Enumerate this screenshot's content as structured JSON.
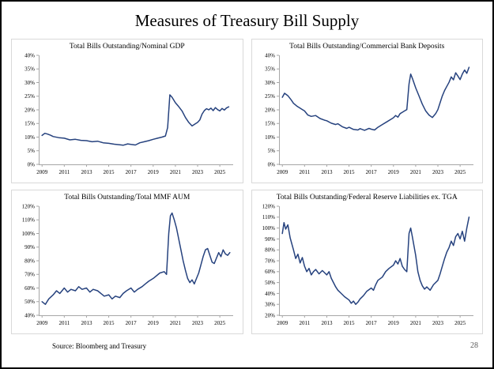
{
  "slide": {
    "title": "Measures of Treasury Bill Supply",
    "source": "Source: Bloomberg and Treasury",
    "page_number": "28"
  },
  "colors": {
    "line": "#26427e",
    "axis": "#a6a6a6",
    "tick_text": "#000000"
  },
  "chart_data": [
    {
      "type": "line",
      "title": "Total Bills Outstanding/Nominal GDP",
      "xlabel": "",
      "ylabel": "",
      "legend": false,
      "grid": false,
      "xlim": [
        2008.7,
        2026.2
      ],
      "ylim": [
        0,
        40
      ],
      "yticks": [
        0,
        5,
        10,
        15,
        20,
        25,
        30,
        35,
        40
      ],
      "xticks": [
        2009,
        2011,
        2013,
        2015,
        2017,
        2019,
        2021,
        2023,
        2025
      ],
      "points": [
        [
          2009.0,
          10.6
        ],
        [
          2009.25,
          11.4
        ],
        [
          2009.5,
          11.1
        ],
        [
          2009.75,
          10.7
        ],
        [
          2010.0,
          10.2
        ],
        [
          2010.5,
          9.8
        ],
        [
          2011.0,
          9.6
        ],
        [
          2011.5,
          9.0
        ],
        [
          2012.0,
          9.2
        ],
        [
          2012.5,
          8.8
        ],
        [
          2013.0,
          8.7
        ],
        [
          2013.5,
          8.3
        ],
        [
          2014.0,
          8.5
        ],
        [
          2014.5,
          7.9
        ],
        [
          2015.0,
          7.7
        ],
        [
          2015.5,
          7.4
        ],
        [
          2016.0,
          7.2
        ],
        [
          2016.3,
          7.0
        ],
        [
          2016.7,
          7.5
        ],
        [
          2017.0,
          7.3
        ],
        [
          2017.4,
          7.1
        ],
        [
          2017.8,
          7.9
        ],
        [
          2018.2,
          8.3
        ],
        [
          2018.6,
          8.7
        ],
        [
          2019.0,
          9.2
        ],
        [
          2019.4,
          9.6
        ],
        [
          2019.8,
          10.0
        ],
        [
          2020.1,
          10.4
        ],
        [
          2020.3,
          13.5
        ],
        [
          2020.5,
          25.5
        ],
        [
          2020.7,
          24.6
        ],
        [
          2021.0,
          22.6
        ],
        [
          2021.3,
          21.2
        ],
        [
          2021.6,
          19.6
        ],
        [
          2021.9,
          17.2
        ],
        [
          2022.2,
          15.4
        ],
        [
          2022.5,
          14.1
        ],
        [
          2022.8,
          14.9
        ],
        [
          2023.0,
          15.4
        ],
        [
          2023.2,
          16.3
        ],
        [
          2023.4,
          18.4
        ],
        [
          2023.6,
          19.7
        ],
        [
          2023.8,
          20.4
        ],
        [
          2024.0,
          20.0
        ],
        [
          2024.2,
          20.6
        ],
        [
          2024.4,
          19.7
        ],
        [
          2024.6,
          20.8
        ],
        [
          2024.8,
          20.1
        ],
        [
          2025.0,
          19.6
        ],
        [
          2025.2,
          20.5
        ],
        [
          2025.4,
          19.9
        ],
        [
          2025.6,
          20.7
        ],
        [
          2025.8,
          21.1
        ]
      ]
    },
    {
      "type": "line",
      "title": "Total Bills Outstanding/Commercial Bank Deposits",
      "xlabel": "",
      "ylabel": "",
      "legend": false,
      "grid": false,
      "xlim": [
        2008.7,
        2026.2
      ],
      "ylim": [
        0,
        40
      ],
      "yticks": [
        0,
        5,
        10,
        15,
        20,
        25,
        30,
        35,
        40
      ],
      "xticks": [
        2009,
        2011,
        2013,
        2015,
        2017,
        2019,
        2021,
        2023,
        2025
      ],
      "points": [
        [
          2009.0,
          24.6
        ],
        [
          2009.2,
          26.1
        ],
        [
          2009.5,
          25.2
        ],
        [
          2009.8,
          23.6
        ],
        [
          2010.0,
          22.4
        ],
        [
          2010.3,
          21.4
        ],
        [
          2010.6,
          20.6
        ],
        [
          2011.0,
          19.6
        ],
        [
          2011.3,
          18.1
        ],
        [
          2011.6,
          17.6
        ],
        [
          2012.0,
          17.9
        ],
        [
          2012.4,
          16.8
        ],
        [
          2012.8,
          16.2
        ],
        [
          2013.0,
          16.0
        ],
        [
          2013.4,
          15.1
        ],
        [
          2013.8,
          14.6
        ],
        [
          2014.0,
          14.9
        ],
        [
          2014.4,
          13.8
        ],
        [
          2014.8,
          13.2
        ],
        [
          2015.0,
          13.6
        ],
        [
          2015.4,
          12.8
        ],
        [
          2015.8,
          12.6
        ],
        [
          2016.0,
          13.1
        ],
        [
          2016.4,
          12.5
        ],
        [
          2016.8,
          13.2
        ],
        [
          2017.0,
          12.9
        ],
        [
          2017.3,
          12.6
        ],
        [
          2017.6,
          13.6
        ],
        [
          2018.0,
          14.6
        ],
        [
          2018.4,
          15.6
        ],
        [
          2018.8,
          16.6
        ],
        [
          2019.0,
          17.1
        ],
        [
          2019.2,
          17.9
        ],
        [
          2019.4,
          17.3
        ],
        [
          2019.6,
          18.6
        ],
        [
          2019.8,
          19.1
        ],
        [
          2020.0,
          19.6
        ],
        [
          2020.2,
          20.1
        ],
        [
          2020.4,
          29.5
        ],
        [
          2020.55,
          33.1
        ],
        [
          2020.7,
          31.6
        ],
        [
          2021.0,
          28.1
        ],
        [
          2021.3,
          25.1
        ],
        [
          2021.6,
          22.1
        ],
        [
          2021.9,
          19.6
        ],
        [
          2022.2,
          18.1
        ],
        [
          2022.5,
          17.2
        ],
        [
          2022.8,
          18.6
        ],
        [
          2023.0,
          20.1
        ],
        [
          2023.2,
          22.6
        ],
        [
          2023.4,
          25.1
        ],
        [
          2023.6,
          27.1
        ],
        [
          2023.8,
          28.6
        ],
        [
          2024.0,
          30.1
        ],
        [
          2024.2,
          32.1
        ],
        [
          2024.4,
          31.0
        ],
        [
          2024.6,
          33.6
        ],
        [
          2024.8,
          32.4
        ],
        [
          2025.0,
          31.1
        ],
        [
          2025.2,
          33.1
        ],
        [
          2025.4,
          34.6
        ],
        [
          2025.6,
          33.4
        ],
        [
          2025.8,
          35.6
        ]
      ]
    },
    {
      "type": "line",
      "title": "Total Bills Outstanding/Total MMF AUM",
      "xlabel": "",
      "ylabel": "",
      "legend": false,
      "grid": false,
      "xlim": [
        2008.7,
        2026.2
      ],
      "ylim": [
        40,
        120
      ],
      "yticks": [
        40,
        50,
        60,
        70,
        80,
        90,
        100,
        110,
        120
      ],
      "xticks": [
        2009,
        2011,
        2013,
        2015,
        2017,
        2019,
        2021,
        2023,
        2025
      ],
      "points": [
        [
          2009.0,
          50
        ],
        [
          2009.3,
          48
        ],
        [
          2009.6,
          52
        ],
        [
          2010.0,
          55
        ],
        [
          2010.3,
          58
        ],
        [
          2010.6,
          56
        ],
        [
          2011.0,
          60
        ],
        [
          2011.3,
          57
        ],
        [
          2011.6,
          59
        ],
        [
          2012.0,
          58
        ],
        [
          2012.3,
          61
        ],
        [
          2012.6,
          59
        ],
        [
          2013.0,
          60
        ],
        [
          2013.3,
          57
        ],
        [
          2013.6,
          59
        ],
        [
          2014.0,
          58
        ],
        [
          2014.3,
          56
        ],
        [
          2014.6,
          54
        ],
        [
          2015.0,
          55
        ],
        [
          2015.3,
          52
        ],
        [
          2015.6,
          54
        ],
        [
          2016.0,
          53
        ],
        [
          2016.3,
          56
        ],
        [
          2016.6,
          58
        ],
        [
          2017.0,
          60
        ],
        [
          2017.3,
          57
        ],
        [
          2017.6,
          59
        ],
        [
          2018.0,
          61
        ],
        [
          2018.3,
          63
        ],
        [
          2018.6,
          65
        ],
        [
          2019.0,
          67
        ],
        [
          2019.3,
          69
        ],
        [
          2019.6,
          71
        ],
        [
          2020.0,
          72
        ],
        [
          2020.2,
          70
        ],
        [
          2020.4,
          100
        ],
        [
          2020.55,
          113
        ],
        [
          2020.7,
          115
        ],
        [
          2020.9,
          110
        ],
        [
          2021.1,
          104
        ],
        [
          2021.3,
          96
        ],
        [
          2021.5,
          88
        ],
        [
          2021.7,
          80
        ],
        [
          2021.9,
          73
        ],
        [
          2022.1,
          67
        ],
        [
          2022.3,
          64
        ],
        [
          2022.5,
          66
        ],
        [
          2022.7,
          63
        ],
        [
          2022.9,
          67
        ],
        [
          2023.1,
          71
        ],
        [
          2023.3,
          77
        ],
        [
          2023.5,
          83
        ],
        [
          2023.7,
          88
        ],
        [
          2023.9,
          89
        ],
        [
          2024.1,
          84
        ],
        [
          2024.3,
          79
        ],
        [
          2024.5,
          78
        ],
        [
          2024.7,
          82
        ],
        [
          2024.9,
          86
        ],
        [
          2025.1,
          83
        ],
        [
          2025.3,
          88
        ],
        [
          2025.5,
          85
        ],
        [
          2025.7,
          84
        ],
        [
          2025.9,
          86
        ]
      ]
    },
    {
      "type": "line",
      "title": "Total Bills Outstanding/Federal Reserve Liabilities ex. TGA",
      "xlabel": "",
      "ylabel": "",
      "legend": false,
      "grid": false,
      "xlim": [
        2008.7,
        2026.2
      ],
      "ylim": [
        20,
        120
      ],
      "yticks": [
        20,
        30,
        40,
        50,
        60,
        70,
        80,
        90,
        100,
        110,
        120
      ],
      "xticks": [
        2009,
        2011,
        2013,
        2015,
        2017,
        2019,
        2021,
        2023,
        2025
      ],
      "points": [
        [
          2009.0,
          95
        ],
        [
          2009.15,
          105
        ],
        [
          2009.3,
          99
        ],
        [
          2009.5,
          103
        ],
        [
          2009.7,
          91
        ],
        [
          2010.0,
          80
        ],
        [
          2010.2,
          72
        ],
        [
          2010.4,
          76
        ],
        [
          2010.6,
          68
        ],
        [
          2010.8,
          73
        ],
        [
          2011.0,
          65
        ],
        [
          2011.2,
          60
        ],
        [
          2011.4,
          63
        ],
        [
          2011.6,
          57
        ],
        [
          2011.8,
          60
        ],
        [
          2012.0,
          62
        ],
        [
          2012.3,
          58
        ],
        [
          2012.6,
          61
        ],
        [
          2013.0,
          57
        ],
        [
          2013.2,
          60
        ],
        [
          2013.4,
          54
        ],
        [
          2013.6,
          50
        ],
        [
          2013.8,
          46
        ],
        [
          2014.0,
          43
        ],
        [
          2014.3,
          40
        ],
        [
          2014.6,
          37
        ],
        [
          2015.0,
          34
        ],
        [
          2015.2,
          31
        ],
        [
          2015.4,
          33
        ],
        [
          2015.6,
          30
        ],
        [
          2015.8,
          32
        ],
        [
          2016.0,
          35
        ],
        [
          2016.3,
          38
        ],
        [
          2016.6,
          42
        ],
        [
          2017.0,
          45
        ],
        [
          2017.2,
          43
        ],
        [
          2017.4,
          48
        ],
        [
          2017.6,
          52
        ],
        [
          2018.0,
          55
        ],
        [
          2018.3,
          60
        ],
        [
          2018.6,
          63
        ],
        [
          2019.0,
          66
        ],
        [
          2019.2,
          70
        ],
        [
          2019.4,
          67
        ],
        [
          2019.6,
          72
        ],
        [
          2019.8,
          65
        ],
        [
          2020.0,
          62
        ],
        [
          2020.2,
          60
        ],
        [
          2020.4,
          95
        ],
        [
          2020.55,
          100
        ],
        [
          2020.7,
          92
        ],
        [
          2021.0,
          75
        ],
        [
          2021.2,
          60
        ],
        [
          2021.4,
          52
        ],
        [
          2021.6,
          47
        ],
        [
          2021.8,
          44
        ],
        [
          2022.0,
          46
        ],
        [
          2022.3,
          43
        ],
        [
          2022.6,
          48
        ],
        [
          2023.0,
          52
        ],
        [
          2023.2,
          58
        ],
        [
          2023.4,
          65
        ],
        [
          2023.6,
          72
        ],
        [
          2023.8,
          78
        ],
        [
          2024.0,
          82
        ],
        [
          2024.2,
          88
        ],
        [
          2024.4,
          84
        ],
        [
          2024.6,
          92
        ],
        [
          2024.8,
          95
        ],
        [
          2025.0,
          90
        ],
        [
          2025.2,
          97
        ],
        [
          2025.4,
          88
        ],
        [
          2025.6,
          100
        ],
        [
          2025.8,
          110
        ]
      ]
    }
  ]
}
